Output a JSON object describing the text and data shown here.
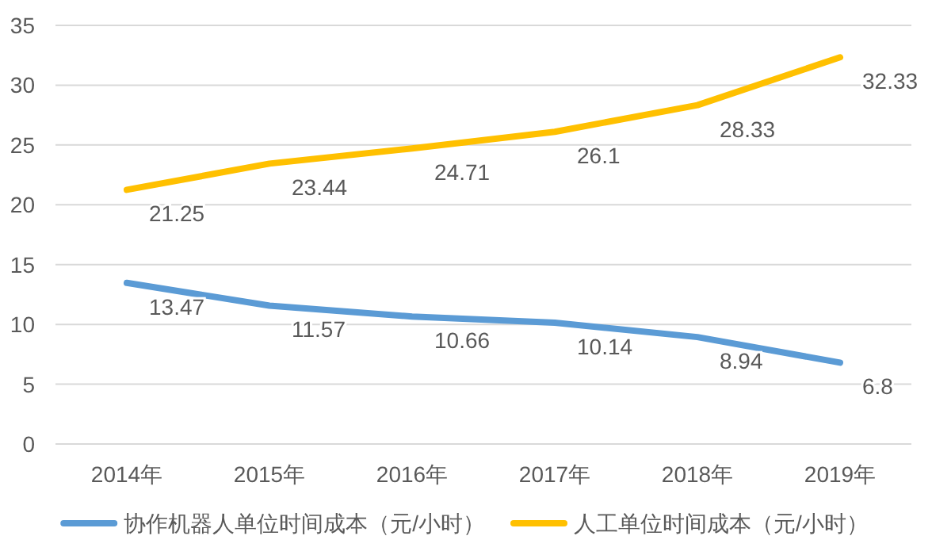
{
  "chart_data": {
    "type": "line",
    "categories": [
      "2014年",
      "2015年",
      "2016年",
      "2017年",
      "2018年",
      "2019年"
    ],
    "series": [
      {
        "name": "协作机器人单位时间成本（元/小时）",
        "color": "#5b9bd5",
        "values": [
          13.47,
          11.57,
          10.66,
          10.14,
          8.94,
          6.8
        ]
      },
      {
        "name": "人工单位时间成本（元/小时）",
        "color": "#ffc000",
        "values": [
          21.25,
          23.44,
          24.71,
          26.1,
          28.33,
          32.33
        ]
      }
    ],
    "ylim": [
      0,
      35
    ],
    "yticks": [
      0,
      5,
      10,
      15,
      20,
      25,
      30,
      35
    ],
    "grid": "y",
    "legend": "bottom",
    "data_labels": true,
    "marker": "none",
    "line_style": "solid"
  }
}
